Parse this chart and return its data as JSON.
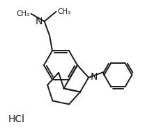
{
  "background_color": "#ffffff",
  "line_color": "#1a1a1a",
  "line_width": 1.4,
  "font_size": 9,
  "hcl_label": "HCl",
  "N_label": "N",
  "N_sub_label": "N"
}
